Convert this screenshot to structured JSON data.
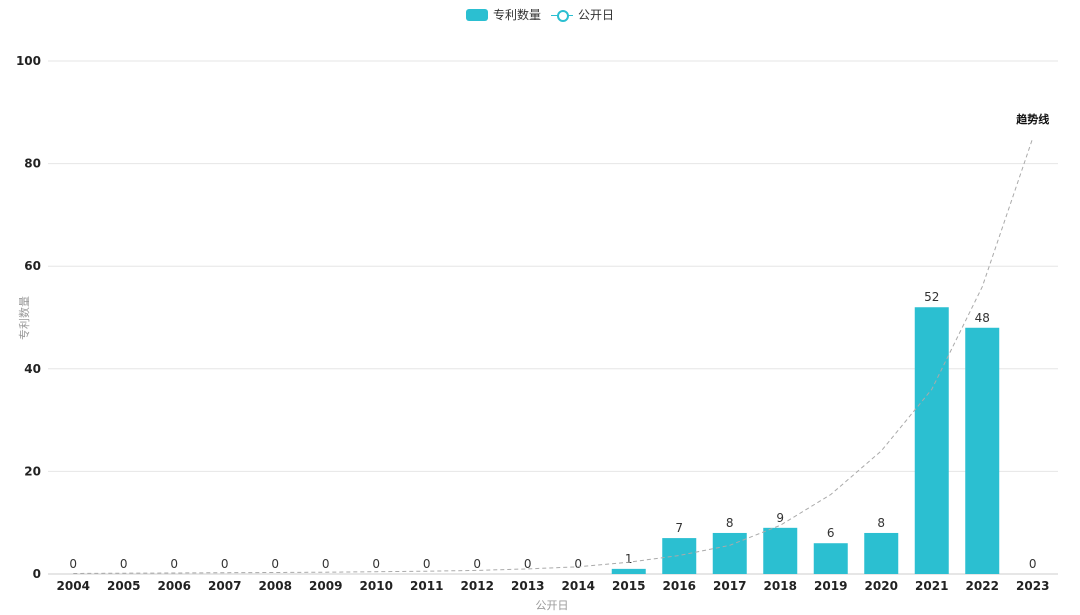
{
  "legend": {
    "bar_label": "专利数量",
    "line_label": "公开日"
  },
  "colors": {
    "bar": "#2bbfd1",
    "trend": "#aaaaaa",
    "grid": "#e6e6e6",
    "axis": "#cccccc"
  },
  "chart_data": {
    "type": "bar",
    "title": "",
    "xlabel": "公开日",
    "ylabel": "专利数量",
    "ylim": [
      0,
      100
    ],
    "yticks": [
      "0",
      "20",
      "40",
      "60",
      "80",
      "100"
    ],
    "grid": true,
    "legend_position": "top-center",
    "categories": [
      "2004",
      "2005",
      "2006",
      "2007",
      "2008",
      "2009",
      "2010",
      "2011",
      "2012",
      "2013",
      "2014",
      "2015",
      "2016",
      "2017",
      "2018",
      "2019",
      "2020",
      "2021",
      "2022",
      "2023"
    ],
    "series": [
      {
        "name": "专利数量",
        "values": [
          0,
          0,
          0,
          0,
          0,
          0,
          0,
          0,
          0,
          0,
          0,
          1,
          7,
          8,
          9,
          6,
          8,
          52,
          48,
          0
        ]
      }
    ],
    "trendline": {
      "label": "趋势线",
      "style": "dashed",
      "values": [
        0.1,
        0.15,
        0.2,
        0.25,
        0.3,
        0.35,
        0.45,
        0.55,
        0.7,
        1.0,
        1.4,
        2.3,
        3.6,
        5.6,
        9.5,
        15.5,
        24,
        36,
        56,
        85
      ]
    }
  }
}
